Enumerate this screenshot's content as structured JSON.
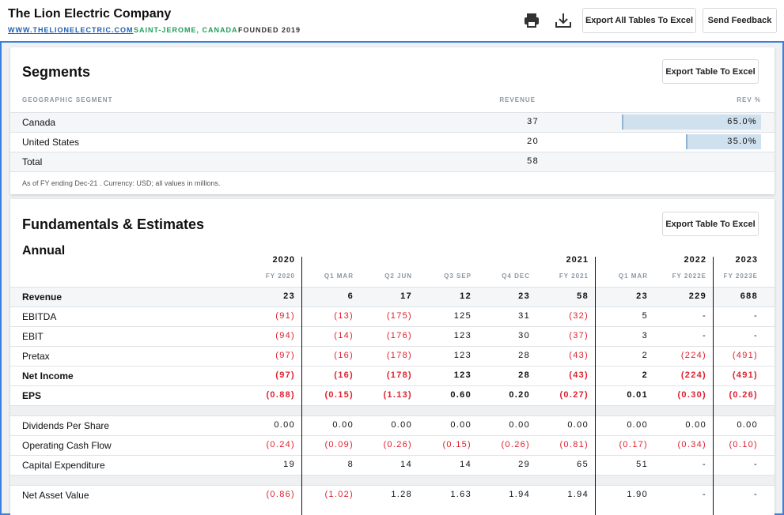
{
  "header": {
    "title": "The Lion Electric Company",
    "website": "WWW.THELIONELECTRIC.COM",
    "location": "SAINT-JEROME, CANADA",
    "founded": "FOUNDED 2019",
    "buttons": [
      "Export All Tables To Excel",
      "Send Feedback"
    ]
  },
  "segments": {
    "title": "Segments",
    "export": "Export Table To Excel",
    "columns": [
      "GEOGRAPHIC SEGMENT",
      "REVENUE",
      "REV %"
    ],
    "rows": [
      {
        "label": "Canada",
        "revenue": "37",
        "share": {
          "value": 65.0,
          "label": "65.0%"
        }
      },
      {
        "label": "United States",
        "revenue": "20",
        "share": {
          "value": 35.0,
          "label": "35.0%"
        }
      },
      {
        "label": "Total",
        "revenue": "58"
      }
    ],
    "note": "As of FY ending Dec-21 . Currency: USD; all values in millions."
  },
  "fundamentals": {
    "title": "Fundamentals & Estimates",
    "export": "Export Table To Excel",
    "subtitle": "Annual",
    "columns": [
      {
        "year": "2020",
        "period": "FY 2020"
      },
      {
        "period": "Q1 MAR"
      },
      {
        "period": "Q2 JUN"
      },
      {
        "period": "Q3 SEP"
      },
      {
        "period": "Q4 DEC"
      },
      {
        "year": "2021",
        "period": "FY 2021"
      },
      {
        "period": "Q1 MAR"
      },
      {
        "year": "2022",
        "period": "FY 2022E"
      },
      {
        "year": "2023",
        "period": "FY 2023E"
      }
    ],
    "groups": [
      [
        {
          "label": "Revenue",
          "bold": true,
          "values": [
            "23",
            "6",
            "17",
            "12",
            "23",
            "58",
            "23",
            "229",
            "688"
          ]
        },
        {
          "label": "EBITDA",
          "values": [
            "(91)",
            "(13)",
            "(175)",
            "125",
            "31",
            "(32)",
            "5",
            "-",
            "-"
          ]
        },
        {
          "label": "EBIT",
          "values": [
            "(94)",
            "(14)",
            "(176)",
            "123",
            "30",
            "(37)",
            "3",
            "-",
            "-"
          ]
        },
        {
          "label": "Pretax",
          "values": [
            "(97)",
            "(16)",
            "(178)",
            "123",
            "28",
            "(43)",
            "2",
            "(224)",
            "(491)"
          ]
        },
        {
          "label": "Net Income",
          "bold": true,
          "values": [
            "(97)",
            "(16)",
            "(178)",
            "123",
            "28",
            "(43)",
            "2",
            "(224)",
            "(491)"
          ]
        },
        {
          "label": "EPS",
          "bold": true,
          "values": [
            "(0.88)",
            "(0.15)",
            "(1.13)",
            "0.60",
            "0.20",
            "(0.27)",
            "0.01",
            "(0.30)",
            "(0.26)"
          ]
        }
      ],
      [
        {
          "label": "Dividends Per Share",
          "values": [
            "0.00",
            "0.00",
            "0.00",
            "0.00",
            "0.00",
            "0.00",
            "0.00",
            "0.00",
            "0.00"
          ]
        },
        {
          "label": "Operating Cash Flow",
          "values": [
            "(0.24)",
            "(0.09)",
            "(0.26)",
            "(0.15)",
            "(0.26)",
            "(0.81)",
            "(0.17)",
            "(0.34)",
            "(0.10)"
          ]
        },
        {
          "label": "Capital Expenditure",
          "values": [
            "19",
            "8",
            "14",
            "14",
            "29",
            "65",
            "51",
            "-",
            "-"
          ]
        }
      ],
      [
        {
          "label": "Net Asset Value",
          "values": [
            "(0.86)",
            "(1.02)",
            "1.28",
            "1.63",
            "1.94",
            "1.94",
            "1.90",
            "-",
            "-"
          ]
        }
      ]
    ]
  }
}
